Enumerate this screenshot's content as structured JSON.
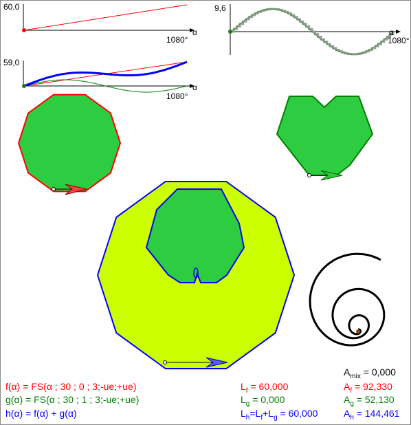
{
  "colors": {
    "red": "#ff0000",
    "green": "#008000",
    "blue": "#0000ff",
    "fill_green": "#2ecc40",
    "fill_yellow": "#ccff00",
    "stroke_dark": "#000000"
  },
  "graph1": {
    "ymax": "60,0",
    "axis": "α",
    "xmax": "1080°"
  },
  "graph2": {
    "ymax": "9,6",
    "axis": "α",
    "xmax": "1080°"
  },
  "graph3": {
    "ymax": "59,0",
    "axis": "α",
    "xmax": "1080°"
  },
  "formulas": {
    "f": "f(α) = FS(α ; 30 ; 0 ; 3;-ue;+ue)",
    "g": "g(α) = FS(α ; 30 ; 1 ; 3;-ue;+ue)",
    "h": "h(α) = f(α) + g(α)"
  },
  "stats": {
    "amix": "A",
    "amix_sub": "mix",
    "amix_val": " = 0,000",
    "lf": "L",
    "lf_sub": "f",
    "lf_val": " = 60,000",
    "lg": "L",
    "lg_sub": "g",
    "lg_val": " = 0,000",
    "lh": "L",
    "lh_sub": "h",
    "lh_mid1": "=L",
    "lh_mid1_sub": "f",
    "lh_mid2": "+L",
    "lh_mid2_sub": "g",
    "lh_val": " = 60,000",
    "af": "A",
    "af_sub": "f",
    "af_val": " = 92,330",
    "ag": "A",
    "ag_sub": "g",
    "ag_val": " = 52,130",
    "ah": "A",
    "ah_sub": "h",
    "ah_val": " = 144,461"
  }
}
